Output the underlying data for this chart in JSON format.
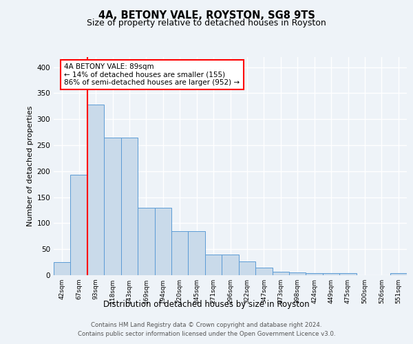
{
  "title1": "4A, BETONY VALE, ROYSTON, SG8 9TS",
  "title2": "Size of property relative to detached houses in Royston",
  "xlabel": "Distribution of detached houses by size in Royston",
  "ylabel": "Number of detached properties",
  "categories": [
    "42sqm",
    "67sqm",
    "93sqm",
    "118sqm",
    "143sqm",
    "169sqm",
    "194sqm",
    "220sqm",
    "245sqm",
    "271sqm",
    "296sqm",
    "322sqm",
    "347sqm",
    "373sqm",
    "398sqm",
    "424sqm",
    "449sqm",
    "475sqm",
    "500sqm",
    "526sqm",
    "551sqm"
  ],
  "bar_values": [
    25,
    193,
    328,
    265,
    265,
    130,
    130,
    85,
    85,
    40,
    40,
    27,
    15,
    7,
    5,
    4,
    4,
    4,
    0,
    0,
    4
  ],
  "bar_color": "#c9daea",
  "bar_edge_color": "#5b9bd5",
  "vline_color": "red",
  "annotation_text": "4A BETONY VALE: 89sqm\n← 14% of detached houses are smaller (155)\n86% of semi-detached houses are larger (952) →",
  "ylim": [
    0,
    420
  ],
  "yticks": [
    0,
    50,
    100,
    150,
    200,
    250,
    300,
    350,
    400
  ],
  "footer1": "Contains HM Land Registry data © Crown copyright and database right 2024.",
  "footer2": "Contains public sector information licensed under the Open Government Licence v3.0.",
  "bg_color": "#eef3f8",
  "grid_color": "white"
}
